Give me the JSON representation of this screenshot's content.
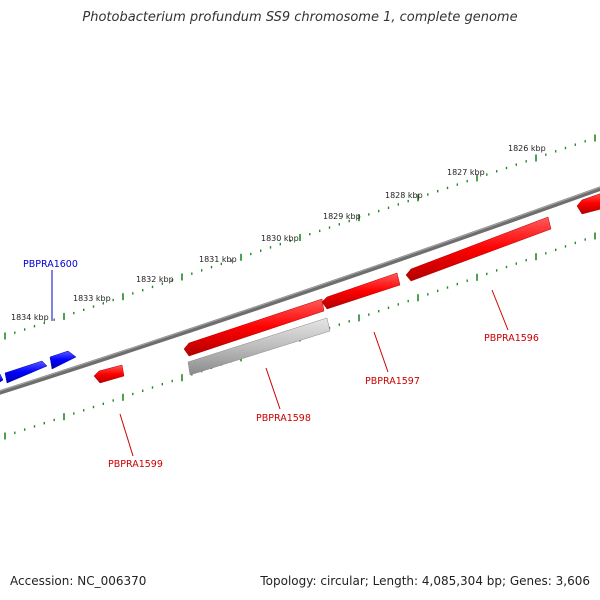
{
  "title": "Photobacterium profundum SS9 chromosome 1, complete genome",
  "footer": {
    "accession": "Accession: NC_006370",
    "summary": "Topology: circular; Length: 4,085,304 bp; Genes: 3,606"
  },
  "scale_labels": [
    "1826 kbp",
    "1827 kbp",
    "1828 kbp",
    "1829 kbp",
    "1830 kbp",
    "1831 kbp",
    "1832 kbp",
    "1833 kbp",
    "1834 kbp"
  ],
  "gene_labels": [
    {
      "name": "PBPRA1600",
      "color": "#0000cc"
    },
    {
      "name": "PBPRA1599",
      "color": "#cc0000"
    },
    {
      "name": "PBPRA1598",
      "color": "#cc0000"
    },
    {
      "name": "PBPRA1597",
      "color": "#cc0000"
    },
    {
      "name": "PBPRA1596",
      "color": "#cc0000"
    }
  ],
  "colors": {
    "forward_strand": "#0000ff",
    "reverse_strand": "#ff0000",
    "pseudo_gene": "#bbbbbb",
    "backbone": "#808080",
    "ticks": "#228b22"
  }
}
